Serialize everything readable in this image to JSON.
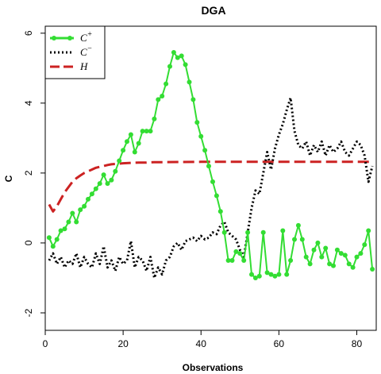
{
  "chart_data": {
    "type": "line",
    "title": "DGA",
    "xlabel": "Observations",
    "ylabel": "C",
    "xlim": [
      0,
      85
    ],
    "ylim": [
      -2.5,
      6.2
    ],
    "xticks": [
      0,
      20,
      40,
      60,
      80
    ],
    "yticks": [
      -2,
      0,
      2,
      4,
      6
    ],
    "grid": false,
    "legend_position": "top-left",
    "series": [
      {
        "name": "C+",
        "color": "#33dd33",
        "style": "solid-markers",
        "x": [
          1,
          2,
          3,
          4,
          5,
          6,
          7,
          8,
          9,
          10,
          11,
          12,
          13,
          14,
          15,
          16,
          17,
          18,
          19,
          20,
          21,
          22,
          23,
          24,
          25,
          26,
          27,
          28,
          29,
          30,
          31,
          32,
          33,
          34,
          35,
          36,
          37,
          38,
          39,
          40,
          41,
          42,
          43,
          44,
          45,
          46,
          47,
          48,
          49,
          50,
          51,
          52,
          53,
          54,
          55,
          56,
          57,
          58,
          59,
          60,
          61,
          62,
          63,
          64,
          65,
          66,
          67,
          68,
          69,
          70,
          71,
          72,
          73,
          74,
          75,
          76,
          77,
          78,
          79,
          80,
          81,
          82,
          83,
          84
        ],
        "values": [
          0.15,
          -0.1,
          0.1,
          0.35,
          0.4,
          0.6,
          0.85,
          0.6,
          0.95,
          1.05,
          1.25,
          1.4,
          1.55,
          1.7,
          1.95,
          1.7,
          1.8,
          2.05,
          2.35,
          2.65,
          2.9,
          3.1,
          2.6,
          2.85,
          3.2,
          3.2,
          3.2,
          3.55,
          4.1,
          4.2,
          4.55,
          5.05,
          5.45,
          5.3,
          5.35,
          5.1,
          4.6,
          4.1,
          3.45,
          3.05,
          2.65,
          2.2,
          1.75,
          1.35,
          0.9,
          0.3,
          -0.5,
          -0.5,
          -0.25,
          -0.3,
          -0.5,
          0.3,
          -0.9,
          -1.0,
          -0.95,
          0.3,
          -0.85,
          -0.9,
          -0.95,
          -0.9,
          0.35,
          -0.9,
          -0.5,
          0.1,
          0.5,
          0.1,
          -0.4,
          -0.6,
          -0.2,
          0.0,
          -0.4,
          -0.15,
          -0.6,
          -0.65,
          -0.2,
          -0.3,
          -0.35,
          -0.6,
          -0.7,
          -0.4,
          -0.3,
          -0.05,
          0.35,
          -0.75
        ]
      },
      {
        "name": "C−",
        "color": "#000000",
        "style": "dotted",
        "x": [
          1,
          2,
          3,
          4,
          5,
          6,
          7,
          8,
          9,
          10,
          11,
          12,
          13,
          14,
          15,
          16,
          17,
          18,
          19,
          20,
          21,
          22,
          23,
          24,
          25,
          26,
          27,
          28,
          29,
          30,
          31,
          32,
          33,
          34,
          35,
          36,
          37,
          38,
          39,
          40,
          41,
          42,
          43,
          44,
          45,
          46,
          47,
          48,
          49,
          50,
          51,
          52,
          53,
          54,
          55,
          56,
          57,
          58,
          59,
          60,
          61,
          62,
          63,
          64,
          65,
          66,
          67,
          68,
          69,
          70,
          71,
          72,
          73,
          74,
          75,
          76,
          77,
          78,
          79,
          80,
          81,
          82,
          83,
          84
        ],
        "values": [
          -0.5,
          -0.3,
          -0.6,
          -0.4,
          -0.7,
          -0.5,
          -0.6,
          -0.3,
          -0.7,
          -0.4,
          -0.6,
          -0.7,
          -0.3,
          -0.6,
          -0.1,
          -0.7,
          -0.5,
          -0.8,
          -0.4,
          -0.6,
          -0.5,
          0.05,
          -0.7,
          -0.4,
          -0.5,
          -0.8,
          -0.4,
          -1.0,
          -0.7,
          -0.9,
          -0.5,
          -0.4,
          -0.1,
          0.0,
          -0.2,
          0.05,
          0.1,
          0.15,
          0.05,
          0.2,
          0.1,
          0.15,
          0.3,
          0.25,
          0.5,
          0.6,
          0.3,
          0.2,
          0.1,
          -0.2,
          -0.4,
          0.3,
          1.0,
          1.5,
          1.4,
          2.0,
          2.6,
          2.1,
          2.7,
          3.1,
          3.4,
          3.8,
          4.15,
          3.2,
          2.8,
          2.7,
          2.9,
          2.5,
          2.8,
          2.6,
          2.9,
          2.5,
          2.8,
          2.6,
          2.7,
          2.9,
          2.6,
          2.5,
          2.7,
          2.9,
          2.8,
          2.5,
          1.75,
          2.2
        ]
      },
      {
        "name": "H",
        "color": "#cc2222",
        "style": "dashed",
        "x": [
          1,
          2,
          3,
          4,
          5,
          6,
          7,
          8,
          9,
          10,
          11,
          12,
          13,
          14,
          15,
          16,
          17,
          18,
          19,
          20,
          22,
          24,
          26,
          28,
          30,
          40,
          50,
          60,
          70,
          80,
          84
        ],
        "values": [
          1.1,
          0.9,
          1.05,
          1.25,
          1.45,
          1.6,
          1.75,
          1.85,
          1.93,
          2.0,
          2.05,
          2.1,
          2.15,
          2.18,
          2.2,
          2.23,
          2.25,
          2.26,
          2.27,
          2.28,
          2.29,
          2.3,
          2.3,
          2.31,
          2.31,
          2.32,
          2.32,
          2.32,
          2.32,
          2.32,
          2.32
        ]
      }
    ]
  }
}
